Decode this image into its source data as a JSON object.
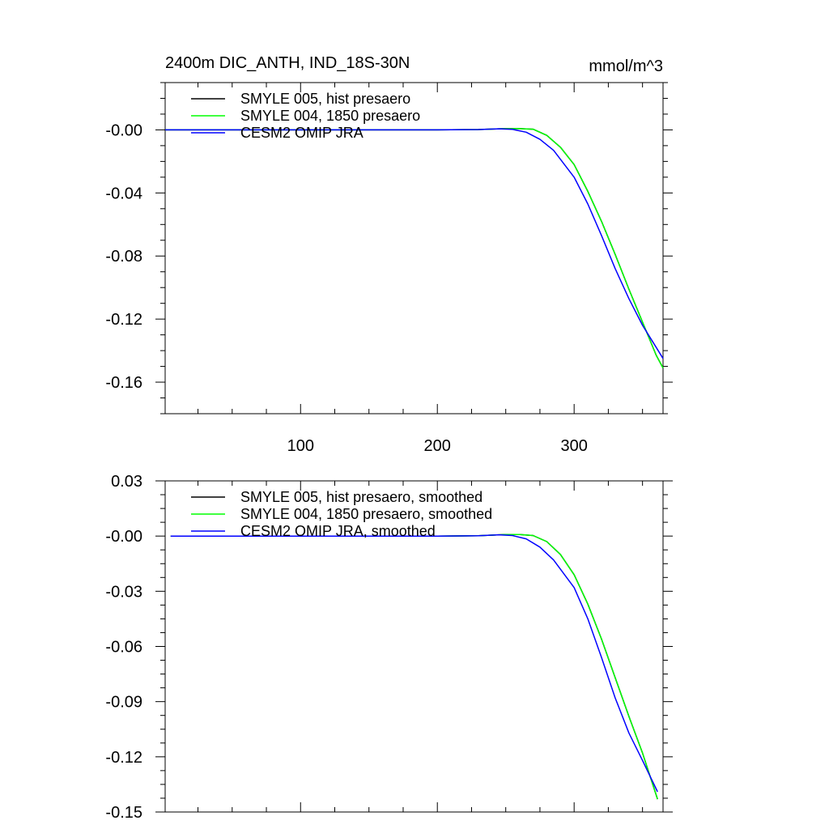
{
  "chart_data": [
    {
      "type": "line",
      "title": "2400m DIC_ANTH, IND_18S-30N",
      "units": "mmol/m^3",
      "xlabel": "",
      "ylabel": "",
      "xlim": [
        1,
        365
      ],
      "ylim": [
        -0.18,
        0.03
      ],
      "xticks": [
        100,
        200,
        300
      ],
      "xtick_labels": [
        "100",
        "200",
        "300"
      ],
      "yticks": [
        0.0,
        -0.04,
        -0.08,
        -0.12,
        -0.16
      ],
      "ytick_labels": [
        "-0.00",
        "-0.04",
        "-0.08",
        "-0.12",
        "-0.16"
      ],
      "grid": false,
      "legend_position": "top-left",
      "series": [
        {
          "name": "SMYLE 005, hist presaero",
          "color": "#000000",
          "x": [
            1,
            50,
            100,
            150,
            200,
            230,
            250,
            260,
            270,
            280,
            290,
            300,
            310,
            320,
            330,
            340,
            350,
            360,
            365
          ],
          "y": [
            0,
            0,
            0,
            0,
            0,
            0.0002,
            0.0008,
            0.0008,
            0.0004,
            -0.0035,
            -0.011,
            -0.022,
            -0.039,
            -0.058,
            -0.079,
            -0.101,
            -0.122,
            -0.143,
            -0.151
          ]
        },
        {
          "name": "SMYLE 004, 1850 presaero",
          "color": "#00ff00",
          "x": [
            1,
            50,
            100,
            150,
            200,
            230,
            250,
            260,
            270,
            280,
            290,
            300,
            310,
            320,
            330,
            340,
            350,
            360,
            365
          ],
          "y": [
            0,
            0,
            0,
            0,
            0,
            0.0002,
            0.0008,
            0.0008,
            0.0004,
            -0.0035,
            -0.011,
            -0.022,
            -0.039,
            -0.058,
            -0.079,
            -0.101,
            -0.122,
            -0.143,
            -0.151
          ]
        },
        {
          "name": "CESM2 OMIP JRA",
          "color": "#0000ff",
          "x": [
            1,
            50,
            100,
            150,
            200,
            230,
            245,
            255,
            265,
            275,
            285,
            300,
            310,
            320,
            330,
            340,
            350,
            360,
            365
          ],
          "y": [
            0,
            0,
            0,
            0,
            0,
            0.0002,
            0.0007,
            0.0003,
            -0.0015,
            -0.006,
            -0.013,
            -0.03,
            -0.047,
            -0.067,
            -0.088,
            -0.107,
            -0.124,
            -0.138,
            -0.145
          ]
        }
      ]
    },
    {
      "type": "line",
      "title": "",
      "xlabel": "",
      "ylabel": "",
      "xlim": [
        1,
        365
      ],
      "ylim": [
        -0.15,
        0.03
      ],
      "xticks": [
        100,
        200,
        300
      ],
      "xtick_labels": [],
      "yticks": [
        0.03,
        0.0,
        -0.03,
        -0.06,
        -0.09,
        -0.12,
        -0.15
      ],
      "ytick_labels": [
        "0.03",
        "-0.00",
        "-0.03",
        "-0.06",
        "-0.09",
        "-0.12",
        "-0.15"
      ],
      "grid": false,
      "legend_position": "top-left",
      "series": [
        {
          "name": "SMYLE 005, hist presaero, smoothed",
          "color": "#000000",
          "x": [
            5,
            50,
            100,
            150,
            200,
            230,
            250,
            260,
            270,
            280,
            290,
            300,
            310,
            320,
            330,
            340,
            350,
            361
          ],
          "y": [
            0,
            0,
            0,
            0,
            0,
            0.0002,
            0.0008,
            0.0008,
            0.0003,
            -0.003,
            -0.01,
            -0.021,
            -0.037,
            -0.056,
            -0.077,
            -0.098,
            -0.118,
            -0.143
          ]
        },
        {
          "name": "SMYLE 004, 1850 presaero, smoothed",
          "color": "#00ff00",
          "x": [
            5,
            50,
            100,
            150,
            200,
            230,
            250,
            260,
            270,
            280,
            290,
            300,
            310,
            320,
            330,
            340,
            350,
            361
          ],
          "y": [
            0,
            0,
            0,
            0,
            0,
            0.0002,
            0.0008,
            0.0008,
            0.0003,
            -0.003,
            -0.01,
            -0.021,
            -0.037,
            -0.056,
            -0.077,
            -0.098,
            -0.118,
            -0.143
          ]
        },
        {
          "name": "CESM2 OMIP JRA, smoothed",
          "color": "#0000ff",
          "x": [
            5,
            50,
            100,
            150,
            200,
            230,
            245,
            255,
            265,
            275,
            285,
            300,
            310,
            320,
            330,
            340,
            350,
            361
          ],
          "y": [
            0,
            0,
            0,
            0,
            0,
            0.0002,
            0.0007,
            0.0003,
            -0.0015,
            -0.006,
            -0.013,
            -0.028,
            -0.045,
            -0.066,
            -0.088,
            -0.107,
            -0.122,
            -0.139
          ]
        }
      ]
    }
  ]
}
